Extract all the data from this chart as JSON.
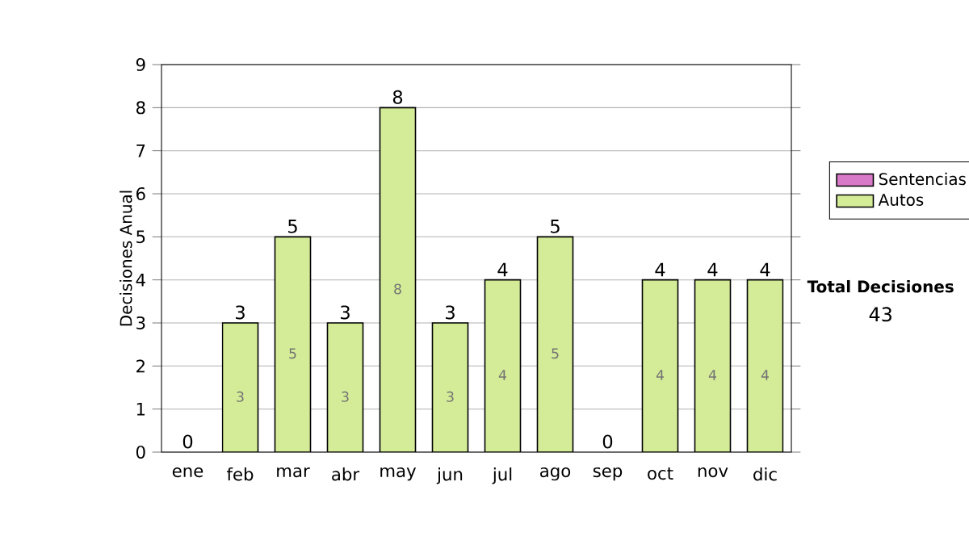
{
  "chart_data": {
    "type": "bar",
    "ylabel": "Decisiones Anual",
    "categories": [
      "ene",
      "feb",
      "mar",
      "abr",
      "may",
      "jun",
      "jul",
      "ago",
      "sep",
      "oct",
      "nov",
      "dic"
    ],
    "stacked": true,
    "series": [
      {
        "name": "Sentencias",
        "color": "#d97ac9",
        "values": [
          0,
          0,
          0,
          0,
          0,
          0,
          0,
          0,
          0,
          0,
          0,
          0
        ]
      },
      {
        "name": "Autos",
        "color": "#d4ec98",
        "values": [
          0,
          3,
          5,
          3,
          8,
          3,
          4,
          5,
          0,
          4,
          4,
          4
        ],
        "value_labels": [
          null,
          "3",
          "5",
          "3",
          "8",
          "3",
          "4",
          "5",
          null,
          "4",
          "4",
          "4"
        ]
      }
    ],
    "totals": [
      "0",
      "3",
      "5",
      "3",
      "8",
      "3",
      "4",
      "5",
      "0",
      "4",
      "4",
      "4"
    ],
    "ylim": [
      0,
      9
    ],
    "yticks": [
      0,
      1,
      2,
      3,
      4,
      5,
      6,
      7,
      8,
      9
    ],
    "grid": "y",
    "legend": "right",
    "annotations": [
      "Total Decisiones",
      "43"
    ]
  }
}
